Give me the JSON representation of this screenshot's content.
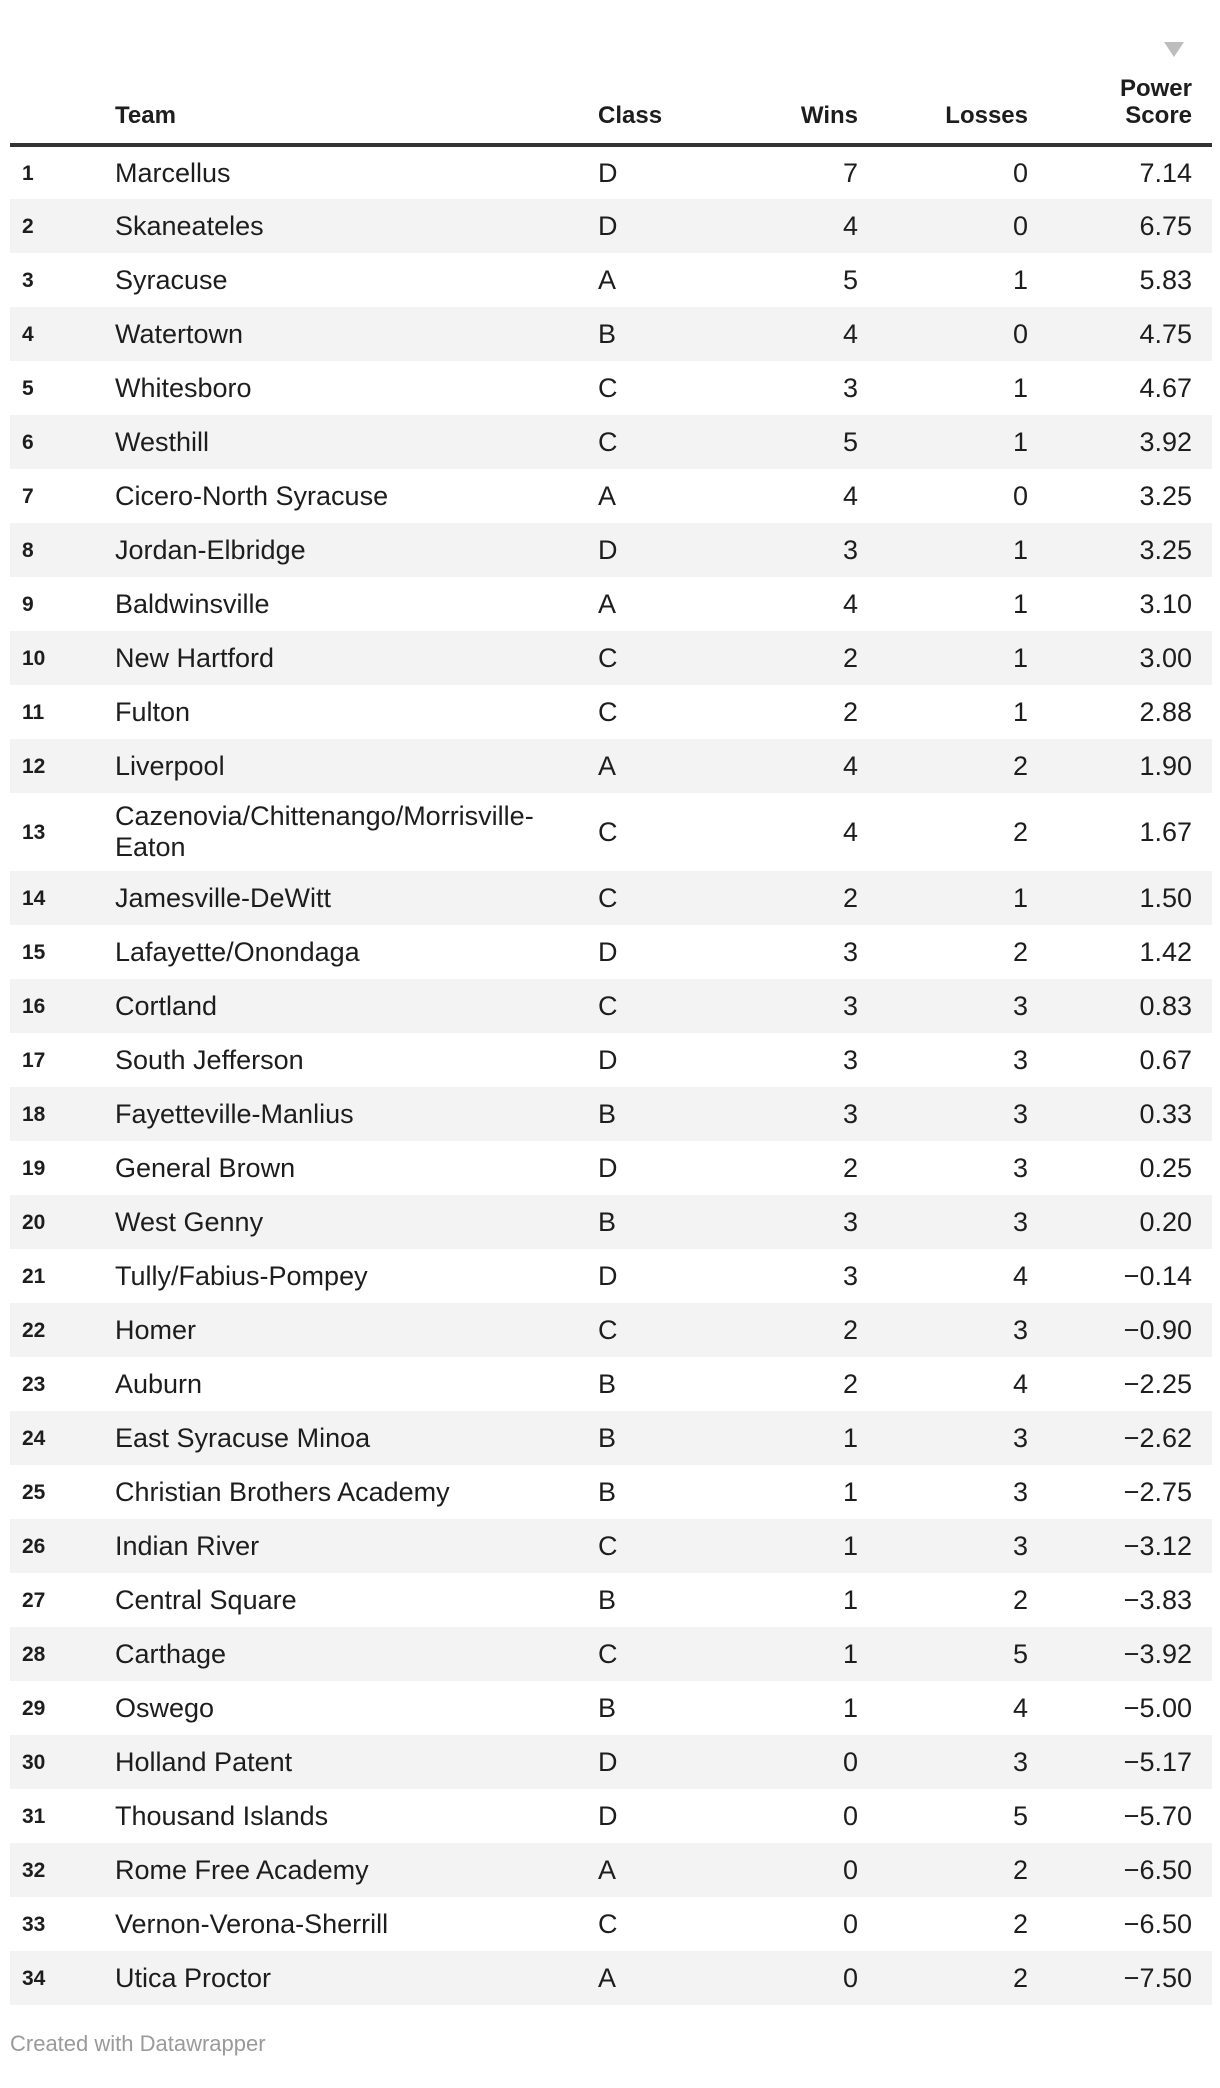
{
  "chart_data": {
    "type": "table",
    "columns": [
      {
        "key": "rank",
        "label": "",
        "align": "left"
      },
      {
        "key": "team",
        "label": "Team",
        "align": "left"
      },
      {
        "key": "class",
        "label": "Class",
        "align": "left"
      },
      {
        "key": "wins",
        "label": "Wins",
        "align": "right"
      },
      {
        "key": "losses",
        "label": "Losses",
        "align": "right"
      },
      {
        "key": "power_score",
        "label": "Power Score",
        "align": "right"
      }
    ],
    "rows": [
      {
        "rank": "1",
        "team": "Marcellus",
        "class": "D",
        "wins": "7",
        "losses": "0",
        "power_score": "7.14"
      },
      {
        "rank": "2",
        "team": "Skaneateles",
        "class": "D",
        "wins": "4",
        "losses": "0",
        "power_score": "6.75"
      },
      {
        "rank": "3",
        "team": "Syracuse",
        "class": "A",
        "wins": "5",
        "losses": "1",
        "power_score": "5.83"
      },
      {
        "rank": "4",
        "team": "Watertown",
        "class": "B",
        "wins": "4",
        "losses": "0",
        "power_score": "4.75"
      },
      {
        "rank": "5",
        "team": "Whitesboro",
        "class": "C",
        "wins": "3",
        "losses": "1",
        "power_score": "4.67"
      },
      {
        "rank": "6",
        "team": "Westhill",
        "class": "C",
        "wins": "5",
        "losses": "1",
        "power_score": "3.92"
      },
      {
        "rank": "7",
        "team": "Cicero-North Syracuse",
        "class": "A",
        "wins": "4",
        "losses": "0",
        "power_score": "3.25"
      },
      {
        "rank": "8",
        "team": "Jordan-Elbridge",
        "class": "D",
        "wins": "3",
        "losses": "1",
        "power_score": "3.25"
      },
      {
        "rank": "9",
        "team": "Baldwinsville",
        "class": "A",
        "wins": "4",
        "losses": "1",
        "power_score": "3.10"
      },
      {
        "rank": "10",
        "team": "New Hartford",
        "class": "C",
        "wins": "2",
        "losses": "1",
        "power_score": "3.00"
      },
      {
        "rank": "11",
        "team": "Fulton",
        "class": "C",
        "wins": "2",
        "losses": "1",
        "power_score": "2.88"
      },
      {
        "rank": "12",
        "team": "Liverpool",
        "class": "A",
        "wins": "4",
        "losses": "2",
        "power_score": "1.90"
      },
      {
        "rank": "13",
        "team": "Cazenovia/Chittenango/Morrisville-Eaton",
        "class": "C",
        "wins": "4",
        "losses": "2",
        "power_score": "1.67"
      },
      {
        "rank": "14",
        "team": "Jamesville-DeWitt",
        "class": "C",
        "wins": "2",
        "losses": "1",
        "power_score": "1.50"
      },
      {
        "rank": "15",
        "team": "Lafayette/Onondaga",
        "class": "D",
        "wins": "3",
        "losses": "2",
        "power_score": "1.42"
      },
      {
        "rank": "16",
        "team": "Cortland",
        "class": "C",
        "wins": "3",
        "losses": "3",
        "power_score": "0.83"
      },
      {
        "rank": "17",
        "team": "South Jefferson",
        "class": "D",
        "wins": "3",
        "losses": "3",
        "power_score": "0.67"
      },
      {
        "rank": "18",
        "team": "Fayetteville-Manlius",
        "class": "B",
        "wins": "3",
        "losses": "3",
        "power_score": "0.33"
      },
      {
        "rank": "19",
        "team": "General Brown",
        "class": "D",
        "wins": "2",
        "losses": "3",
        "power_score": "0.25"
      },
      {
        "rank": "20",
        "team": "West Genny",
        "class": "B",
        "wins": "3",
        "losses": "3",
        "power_score": "0.20"
      },
      {
        "rank": "21",
        "team": "Tully/Fabius-Pompey",
        "class": "D",
        "wins": "3",
        "losses": "4",
        "power_score": "−0.14"
      },
      {
        "rank": "22",
        "team": "Homer",
        "class": "C",
        "wins": "2",
        "losses": "3",
        "power_score": "−0.90"
      },
      {
        "rank": "23",
        "team": "Auburn",
        "class": "B",
        "wins": "2",
        "losses": "4",
        "power_score": "−2.25"
      },
      {
        "rank": "24",
        "team": "East Syracuse Minoa",
        "class": "B",
        "wins": "1",
        "losses": "3",
        "power_score": "−2.62"
      },
      {
        "rank": "25",
        "team": "Christian Brothers Academy",
        "class": "B",
        "wins": "1",
        "losses": "3",
        "power_score": "−2.75"
      },
      {
        "rank": "26",
        "team": "Indian River",
        "class": "C",
        "wins": "1",
        "losses": "3",
        "power_score": "−3.12"
      },
      {
        "rank": "27",
        "team": "Central Square",
        "class": "B",
        "wins": "1",
        "losses": "2",
        "power_score": "−3.83"
      },
      {
        "rank": "28",
        "team": "Carthage",
        "class": "C",
        "wins": "1",
        "losses": "5",
        "power_score": "−3.92"
      },
      {
        "rank": "29",
        "team": "Oswego",
        "class": "B",
        "wins": "1",
        "losses": "4",
        "power_score": "−5.00"
      },
      {
        "rank": "30",
        "team": "Holland Patent",
        "class": "D",
        "wins": "0",
        "losses": "3",
        "power_score": "−5.17"
      },
      {
        "rank": "31",
        "team": "Thousand Islands",
        "class": "D",
        "wins": "0",
        "losses": "5",
        "power_score": "−5.70"
      },
      {
        "rank": "32",
        "team": "Rome Free Academy",
        "class": "A",
        "wins": "0",
        "losses": "2",
        "power_score": "−6.50"
      },
      {
        "rank": "33",
        "team": "Vernon-Verona-Sherrill",
        "class": "C",
        "wins": "0",
        "losses": "2",
        "power_score": "−6.50"
      },
      {
        "rank": "34",
        "team": "Utica Proctor",
        "class": "A",
        "wins": "0",
        "losses": "2",
        "power_score": "−7.50"
      }
    ]
  },
  "header_display": {
    "power_score_two_line": "Power\nScore"
  },
  "sort": {
    "column": "Power Score",
    "direction": "descending",
    "icon": "sort-descending-triangle"
  },
  "footer": {
    "credit": "Created with Datawrapper"
  },
  "colors": {
    "text": "#1d1d1d",
    "header_border": "#333333",
    "zebra_stripe": "#f3f3f3",
    "sort_arrow": "#bdbdbd",
    "footer_text": "#9a9a9a"
  }
}
